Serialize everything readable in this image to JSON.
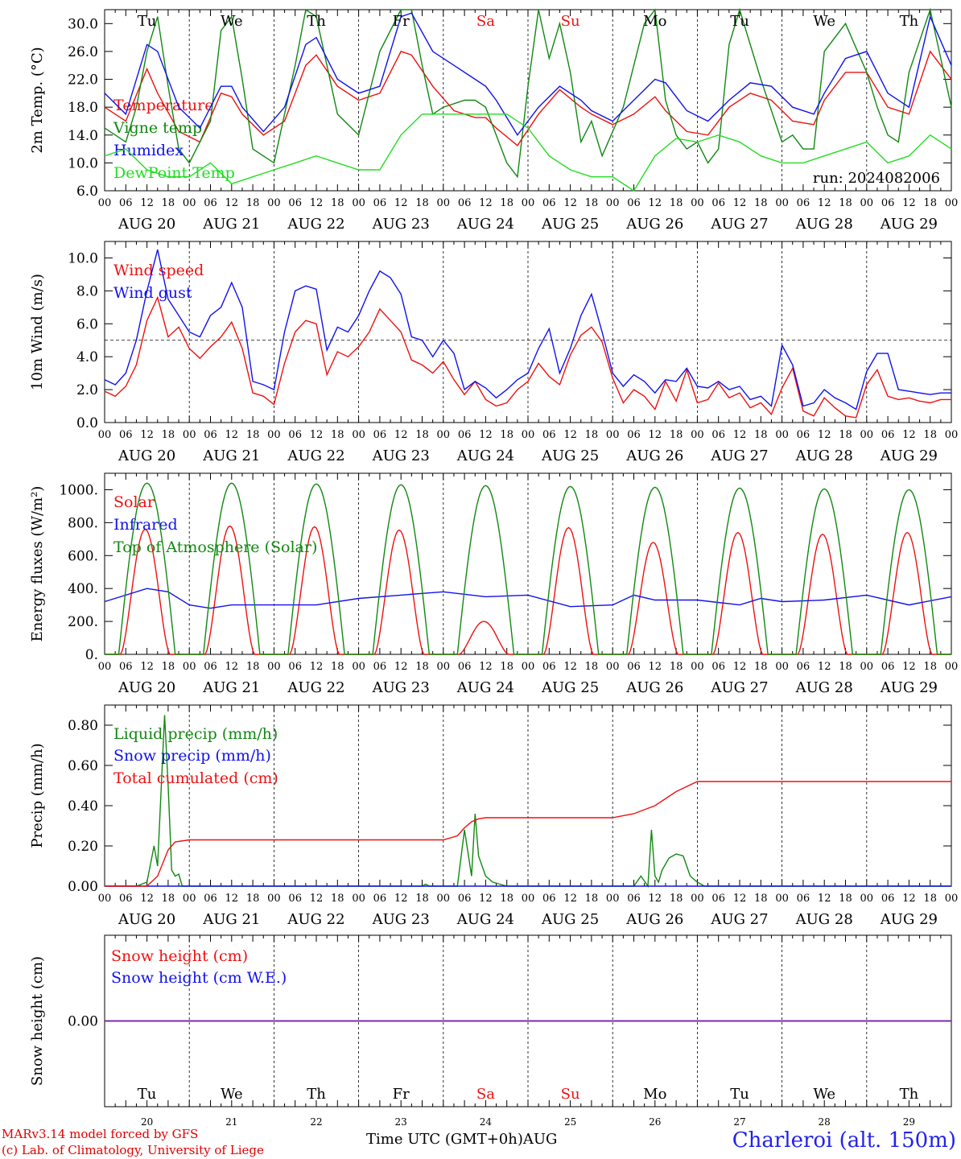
{
  "colors": {
    "red": "#ee1111",
    "green": "#118811",
    "blue": "#1111ee",
    "lightgreen": "#22dd22",
    "purple": "#7722aa"
  },
  "days": [
    "Tu",
    "We",
    "Th",
    "Fr",
    "Sa",
    "Su",
    "Mo",
    "Tu",
    "We",
    "Th"
  ],
  "weekend_days": [
    "Sa",
    "Su"
  ],
  "date_labels": [
    "AUG 20",
    "AUG 21",
    "AUG 22",
    "AUG 23",
    "AUG 24",
    "AUG 25",
    "AUG 26",
    "AUG 27",
    "AUG 28",
    "AUG 29"
  ],
  "hour_ticks": [
    "00",
    "06",
    "12",
    "18"
  ],
  "day_numbers": [
    "20",
    "21",
    "22",
    "23",
    "24",
    "25",
    "26",
    "27",
    "28",
    "29"
  ],
  "run_label": "run: 2024082006",
  "footer": {
    "model": "MARv3.14 model forced by GFS",
    "credit": "(c) Lab. of Climatology, University of Liege",
    "time_label": "Time UTC (GMT+0h)",
    "month": "AUG",
    "station": "Charleroi (alt. 150m)"
  },
  "chart_data": [
    {
      "type": "line",
      "ylabel": "2m Temp. (°C)",
      "ylim": [
        6,
        32
      ],
      "yticks": [
        "6.0",
        "10.0",
        "14.0",
        "18.0",
        "22.0",
        "26.0",
        "30.0"
      ],
      "xlim_hours": [
        0,
        240
      ],
      "series": [
        {
          "name": "Temperature",
          "color": "red",
          "x": [
            0,
            6,
            12,
            15,
            21,
            27,
            33,
            36,
            39,
            45,
            51,
            57,
            60,
            66,
            72,
            78,
            84,
            87,
            93,
            99,
            105,
            108,
            111,
            117,
            123,
            129,
            135,
            138,
            144,
            150,
            156,
            159,
            165,
            171,
            177,
            183,
            189,
            195,
            201,
            204,
            210,
            216,
            222,
            228,
            234,
            240
          ],
          "y": [
            18,
            16,
            23.5,
            20,
            14.5,
            13,
            20,
            19.5,
            17,
            14,
            16,
            24,
            25.5,
            21,
            19,
            20,
            26,
            25.5,
            21,
            17.5,
            16.5,
            16.5,
            15,
            12.5,
            17,
            20.5,
            18,
            17,
            15.5,
            17,
            19.5,
            17.5,
            14.5,
            14,
            18,
            20,
            19,
            16,
            15.5,
            19,
            23,
            23,
            18,
            17,
            26,
            22
          ]
        },
        {
          "name": "Vigne temp",
          "color": "green",
          "x": [
            0,
            6,
            9,
            12,
            15,
            18,
            21,
            24,
            30,
            33,
            36,
            39,
            42,
            48,
            54,
            57,
            60,
            63,
            66,
            72,
            78,
            84,
            87,
            90,
            93,
            96,
            102,
            105,
            108,
            111,
            114,
            117,
            120,
            123,
            126,
            129,
            132,
            135,
            138,
            141,
            147,
            153,
            156,
            159,
            162,
            165,
            168,
            171,
            174,
            177,
            180,
            186,
            192,
            195,
            198,
            201,
            204,
            210,
            216,
            219,
            222,
            225,
            228,
            234,
            240
          ],
          "y": [
            15,
            13,
            18,
            26,
            31,
            21,
            12,
            10,
            16,
            29,
            31,
            22,
            12,
            10,
            24,
            33,
            31,
            24,
            17,
            14,
            26,
            33,
            33,
            24,
            17,
            18,
            19,
            19,
            18,
            14,
            10,
            8,
            21,
            33,
            25,
            30,
            23,
            13,
            16,
            11,
            18,
            30,
            33,
            19,
            14,
            12,
            13,
            10,
            12,
            27,
            32,
            22,
            13,
            14,
            12,
            12,
            26,
            30,
            23,
            18,
            14,
            13,
            23,
            33,
            18
          ]
        },
        {
          "name": "Humidex",
          "color": "blue",
          "x": [
            0,
            6,
            12,
            15,
            21,
            27,
            33,
            36,
            39,
            45,
            51,
            57,
            60,
            66,
            72,
            78,
            84,
            87,
            93,
            99,
            105,
            108,
            111,
            117,
            123,
            129,
            135,
            138,
            144,
            150,
            156,
            159,
            165,
            171,
            177,
            183,
            189,
            195,
            201,
            204,
            210,
            216,
            222,
            228,
            234,
            240
          ],
          "y": [
            20,
            17,
            27,
            26,
            18,
            15,
            21,
            21,
            18,
            14.5,
            18,
            27,
            28,
            22,
            20,
            21,
            31,
            31.5,
            26,
            24,
            22,
            21,
            19,
            14,
            18,
            21,
            19,
            17.5,
            16,
            19,
            22,
            21.5,
            17.5,
            16,
            19,
            21.5,
            21,
            18,
            17,
            20,
            25,
            26,
            20,
            18,
            31,
            24
          ]
        },
        {
          "name": "DewPoint Temp",
          "color": "lightgreen",
          "x": [
            0,
            6,
            12,
            18,
            24,
            30,
            36,
            42,
            48,
            54,
            60,
            66,
            72,
            78,
            84,
            90,
            96,
            102,
            108,
            114,
            120,
            126,
            132,
            138,
            144,
            150,
            156,
            162,
            168,
            174,
            180,
            186,
            192,
            198,
            204,
            210,
            216,
            222,
            228,
            234,
            240
          ],
          "y": [
            11,
            12,
            9,
            8,
            8,
            10,
            7,
            8,
            9,
            10,
            11,
            10,
            9,
            9,
            14,
            17,
            17,
            17,
            17,
            17,
            15,
            11,
            9,
            8,
            8,
            6,
            11,
            13.5,
            13,
            14,
            13,
            11,
            10,
            10,
            11,
            12,
            13,
            10,
            11,
            14,
            12
          ]
        }
      ]
    },
    {
      "type": "line",
      "ylabel": "10m Wind (m/s)",
      "ylim": [
        0,
        11
      ],
      "yticks": [
        "0.0",
        "2.0",
        "4.0",
        "6.0",
        "8.0",
        "10.0"
      ],
      "reference_line": 5,
      "xlim_hours": [
        0,
        240
      ],
      "series": [
        {
          "name": "Wind speed",
          "color": "red",
          "x": [
            0,
            3,
            6,
            9,
            12,
            15,
            18,
            21,
            24,
            27,
            30,
            33,
            36,
            39,
            42,
            45,
            48,
            51,
            54,
            57,
            60,
            63,
            66,
            69,
            72,
            75,
            78,
            81,
            84,
            87,
            90,
            93,
            96,
            99,
            102,
            105,
            108,
            111,
            114,
            117,
            120,
            123,
            126,
            129,
            132,
            135,
            138,
            141,
            144,
            147,
            150,
            153,
            156,
            159,
            162,
            165,
            168,
            171,
            174,
            177,
            180,
            183,
            186,
            189,
            192,
            195,
            198,
            201,
            204,
            207,
            210,
            213,
            216,
            219,
            222,
            225,
            228,
            231,
            234,
            237,
            240
          ],
          "y": [
            1.9,
            1.6,
            2.2,
            3.5,
            6.2,
            7.6,
            5.2,
            5.8,
            4.5,
            3.9,
            4.6,
            5.2,
            6.1,
            4.5,
            1.8,
            1.6,
            1.1,
            3.6,
            5.5,
            6.2,
            6.0,
            2.9,
            4.3,
            4.0,
            4.6,
            5.5,
            6.9,
            6.2,
            5.5,
            3.8,
            3.5,
            3.0,
            3.7,
            2.6,
            1.7,
            2.5,
            1.4,
            1.0,
            1.2,
            2.0,
            2.5,
            3.6,
            2.8,
            2.3,
            4.1,
            5.3,
            5.8,
            4.9,
            2.7,
            1.2,
            2.0,
            1.6,
            0.8,
            2.5,
            1.3,
            3.2,
            1.2,
            1.4,
            2.4,
            1.5,
            1.8,
            0.9,
            1.2,
            0.5,
            2.1,
            3.3,
            0.7,
            0.4,
            1.5,
            0.9,
            0.4,
            0.3,
            2.3,
            3.2,
            1.6,
            1.4,
            1.5,
            1.3,
            1.2,
            1.4,
            1.4
          ]
        },
        {
          "name": "Wind gust",
          "color": "blue",
          "x": [
            0,
            3,
            6,
            9,
            12,
            15,
            18,
            21,
            24,
            27,
            30,
            33,
            36,
            39,
            42,
            45,
            48,
            51,
            54,
            57,
            60,
            63,
            66,
            69,
            72,
            75,
            78,
            81,
            84,
            87,
            90,
            93,
            96,
            99,
            102,
            105,
            108,
            111,
            114,
            117,
            120,
            123,
            126,
            129,
            132,
            135,
            138,
            141,
            144,
            147,
            150,
            153,
            156,
            159,
            162,
            165,
            168,
            171,
            174,
            177,
            180,
            183,
            186,
            189,
            192,
            195,
            198,
            201,
            204,
            207,
            210,
            213,
            216,
            219,
            222,
            225,
            228,
            231,
            234,
            237,
            240
          ],
          "y": [
            2.6,
            2.3,
            3.0,
            5.0,
            8.0,
            10.5,
            7.5,
            6.5,
            5.5,
            5.2,
            6.5,
            7.0,
            8.5,
            7.0,
            2.5,
            2.3,
            2.0,
            5.5,
            8.0,
            8.3,
            8.1,
            4.4,
            5.8,
            5.5,
            6.5,
            8.0,
            9.2,
            8.8,
            7.8,
            5.2,
            5.0,
            4.0,
            5.0,
            4.2,
            2.0,
            2.5,
            2.1,
            1.5,
            2.0,
            2.6,
            3.0,
            4.5,
            5.7,
            3.0,
            4.5,
            6.5,
            7.8,
            5.5,
            3.0,
            2.2,
            2.9,
            2.5,
            1.8,
            2.6,
            2.5,
            3.3,
            2.2,
            2.1,
            2.5,
            2.0,
            2.2,
            1.4,
            1.6,
            1.0,
            4.7,
            3.5,
            1.0,
            1.2,
            2.0,
            1.5,
            1.2,
            0.8,
            3.1,
            4.2,
            4.2,
            2.0,
            1.9,
            1.8,
            1.7,
            1.8,
            1.8
          ]
        }
      ]
    },
    {
      "type": "line",
      "ylabel": "Energy fluxes (W/m²)",
      "ylim": [
        0,
        1100
      ],
      "yticks": [
        "0.",
        "200.",
        "400.",
        "600.",
        "800.",
        "1000."
      ],
      "xlim_hours": [
        0,
        240
      ],
      "series": [
        {
          "name": "Solar",
          "color": "red",
          "daily_peaks": [
            760,
            780,
            775,
            755,
            200,
            770,
            680,
            740,
            730,
            740
          ]
        },
        {
          "name": "Infrared",
          "color": "blue",
          "x": [
            0,
            12,
            18,
            24,
            30,
            36,
            42,
            48,
            60,
            72,
            84,
            90,
            96,
            108,
            120,
            132,
            144,
            150,
            156,
            168,
            180,
            186,
            192,
            204,
            216,
            228,
            240
          ],
          "y": [
            320,
            400,
            380,
            300,
            280,
            300,
            300,
            300,
            300,
            340,
            360,
            370,
            380,
            350,
            360,
            290,
            300,
            360,
            330,
            330,
            300,
            340,
            320,
            330,
            360,
            300,
            350
          ]
        },
        {
          "name": "Top of Atmosphere (Solar)",
          "color": "green",
          "daily_peaks": [
            1040,
            1040,
            1035,
            1030,
            1025,
            1020,
            1015,
            1010,
            1005,
            1000
          ]
        }
      ]
    },
    {
      "type": "line",
      "ylabel": "Precip (mm/h)",
      "ylim": [
        0,
        0.9
      ],
      "yticks": [
        "0.00",
        "0.20",
        "0.40",
        "0.60",
        "0.80"
      ],
      "xlim_hours": [
        0,
        240
      ],
      "series": [
        {
          "name": "Liquid precip (mm/h)",
          "color": "green",
          "x": [
            0,
            9,
            12,
            14,
            15,
            17,
            18,
            19,
            20,
            21,
            22,
            24,
            90,
            91,
            92,
            100,
            102,
            104,
            105,
            106,
            108,
            110,
            112,
            114,
            150,
            152,
            154,
            155,
            156,
            157,
            158,
            160,
            162,
            164,
            166,
            168,
            170,
            240
          ],
          "y": [
            0,
            0,
            0.02,
            0.2,
            0.1,
            0.85,
            0.5,
            0.08,
            0.05,
            0.06,
            0,
            0,
            0,
            0.01,
            0,
            0,
            0.28,
            0.05,
            0.36,
            0.15,
            0.05,
            0.02,
            0.01,
            0,
            0,
            0.05,
            0,
            0.28,
            0.05,
            0.02,
            0.08,
            0.14,
            0.16,
            0.15,
            0.05,
            0.02,
            0,
            0
          ]
        },
        {
          "name": "Snow precip (mm/h)",
          "color": "blue",
          "x": [
            0,
            240
          ],
          "y": [
            0,
            0
          ]
        },
        {
          "name": "Total cumulated (cm)",
          "color": "red",
          "x": [
            0,
            12,
            15,
            18,
            20,
            24,
            96,
            100,
            102,
            104,
            106,
            108,
            144,
            150,
            156,
            162,
            168,
            240
          ],
          "y": [
            0,
            0,
            0.05,
            0.18,
            0.22,
            0.23,
            0.23,
            0.25,
            0.29,
            0.32,
            0.335,
            0.34,
            0.34,
            0.36,
            0.4,
            0.47,
            0.52,
            0.52
          ]
        }
      ]
    },
    {
      "type": "line",
      "ylabel": "Snow height (cm)",
      "ylim": [
        -1,
        1
      ],
      "yticks": [
        "0.00"
      ],
      "xlim_hours": [
        0,
        240
      ],
      "series": [
        {
          "name": "Snow height (cm)",
          "color": "red",
          "x": [
            0,
            240
          ],
          "y": [
            0,
            0
          ]
        },
        {
          "name": "Snow height (cm W.E.)",
          "color": "blue",
          "x": [
            0,
            240
          ],
          "y": [
            0,
            0
          ]
        }
      ]
    }
  ]
}
